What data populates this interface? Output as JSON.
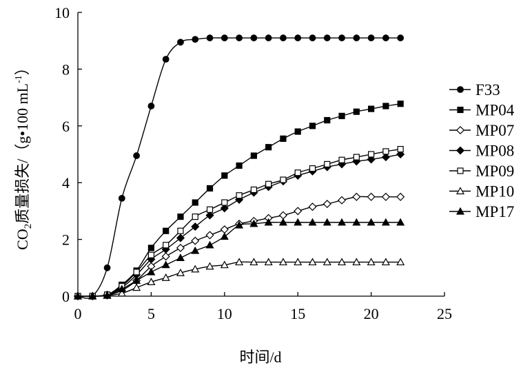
{
  "chart_data": {
    "type": "line",
    "xlabel": "时间/d",
    "ylabel_parts": {
      "main": "CO",
      "sub": "2",
      "rest": "质量损失/（g•100 mL",
      "sup": "-1",
      "end": "）"
    },
    "xlim": [
      0,
      25
    ],
    "ylim": [
      0,
      10
    ],
    "xticks": [
      0,
      5,
      10,
      15,
      20,
      25
    ],
    "yticks": [
      0,
      2,
      4,
      6,
      8,
      10
    ],
    "grid": false,
    "legend_position": "right",
    "series": [
      {
        "name": "F33",
        "marker": "circle",
        "filled": true,
        "x": [
          0,
          1,
          2,
          3,
          4,
          5,
          6,
          7,
          8,
          9,
          10,
          11,
          12,
          13,
          14,
          15,
          16,
          17,
          18,
          19,
          20,
          21,
          22
        ],
        "y": [
          0,
          0,
          1.0,
          3.45,
          4.95,
          6.7,
          8.35,
          8.95,
          9.05,
          9.1,
          9.1,
          9.1,
          9.1,
          9.1,
          9.1,
          9.1,
          9.1,
          9.1,
          9.1,
          9.1,
          9.1,
          9.1,
          9.1
        ]
      },
      {
        "name": "MP04",
        "marker": "square",
        "filled": true,
        "x": [
          0,
          1,
          2,
          3,
          4,
          5,
          6,
          7,
          8,
          9,
          10,
          11,
          12,
          13,
          14,
          15,
          16,
          17,
          18,
          19,
          20,
          21,
          22
        ],
        "y": [
          0,
          0,
          0.05,
          0.4,
          0.9,
          1.7,
          2.3,
          2.8,
          3.3,
          3.8,
          4.25,
          4.6,
          4.95,
          5.25,
          5.55,
          5.8,
          6.0,
          6.2,
          6.35,
          6.5,
          6.6,
          6.7,
          6.78
        ]
      },
      {
        "name": "MP07",
        "marker": "diamond",
        "filled": false,
        "x": [
          0,
          1,
          2,
          3,
          4,
          5,
          6,
          7,
          8,
          9,
          10,
          11,
          12,
          13,
          14,
          15,
          16,
          17,
          18,
          19,
          20,
          21,
          22
        ],
        "y": [
          0,
          0,
          0.03,
          0.2,
          0.55,
          1.05,
          1.4,
          1.7,
          1.95,
          2.15,
          2.35,
          2.55,
          2.65,
          2.75,
          2.85,
          3.0,
          3.15,
          3.25,
          3.38,
          3.5,
          3.5,
          3.5,
          3.5
        ]
      },
      {
        "name": "MP08",
        "marker": "diamond",
        "filled": true,
        "x": [
          0,
          1,
          2,
          3,
          4,
          5,
          6,
          7,
          8,
          9,
          10,
          11,
          12,
          13,
          14,
          15,
          16,
          17,
          18,
          19,
          20,
          21,
          22
        ],
        "y": [
          0,
          0,
          0.05,
          0.3,
          0.75,
          1.3,
          1.65,
          2.05,
          2.45,
          2.85,
          3.1,
          3.4,
          3.65,
          3.85,
          4.05,
          4.25,
          4.4,
          4.55,
          4.65,
          4.75,
          4.82,
          4.9,
          5.0
        ]
      },
      {
        "name": "MP09",
        "marker": "square",
        "filled": false,
        "x": [
          0,
          1,
          2,
          3,
          4,
          5,
          6,
          7,
          8,
          9,
          10,
          11,
          12,
          13,
          14,
          15,
          16,
          17,
          18,
          19,
          20,
          21,
          22
        ],
        "y": [
          0,
          0,
          0.05,
          0.35,
          0.85,
          1.45,
          1.8,
          2.3,
          2.8,
          3.05,
          3.3,
          3.55,
          3.75,
          3.95,
          4.1,
          4.35,
          4.5,
          4.65,
          4.8,
          4.9,
          5.0,
          5.1,
          5.18
        ]
      },
      {
        "name": "MP10",
        "marker": "triangle",
        "filled": false,
        "x": [
          0,
          1,
          2,
          3,
          4,
          5,
          6,
          7,
          8,
          9,
          10,
          11,
          12,
          13,
          14,
          15,
          16,
          17,
          18,
          19,
          20,
          21,
          22
        ],
        "y": [
          0,
          0,
          0.02,
          0.1,
          0.3,
          0.5,
          0.65,
          0.82,
          0.95,
          1.05,
          1.1,
          1.2,
          1.2,
          1.2,
          1.2,
          1.2,
          1.2,
          1.2,
          1.2,
          1.2,
          1.2,
          1.2,
          1.2
        ]
      },
      {
        "name": "MP17",
        "marker": "triangle",
        "filled": true,
        "x": [
          0,
          1,
          2,
          3,
          4,
          5,
          6,
          7,
          8,
          9,
          10,
          11,
          12,
          13,
          14,
          15,
          16,
          17,
          18,
          19,
          20,
          21,
          22
        ],
        "y": [
          0,
          0,
          0.03,
          0.25,
          0.55,
          0.85,
          1.1,
          1.35,
          1.6,
          1.8,
          2.1,
          2.5,
          2.55,
          2.6,
          2.6,
          2.6,
          2.6,
          2.6,
          2.6,
          2.6,
          2.6,
          2.6,
          2.6
        ]
      }
    ]
  }
}
